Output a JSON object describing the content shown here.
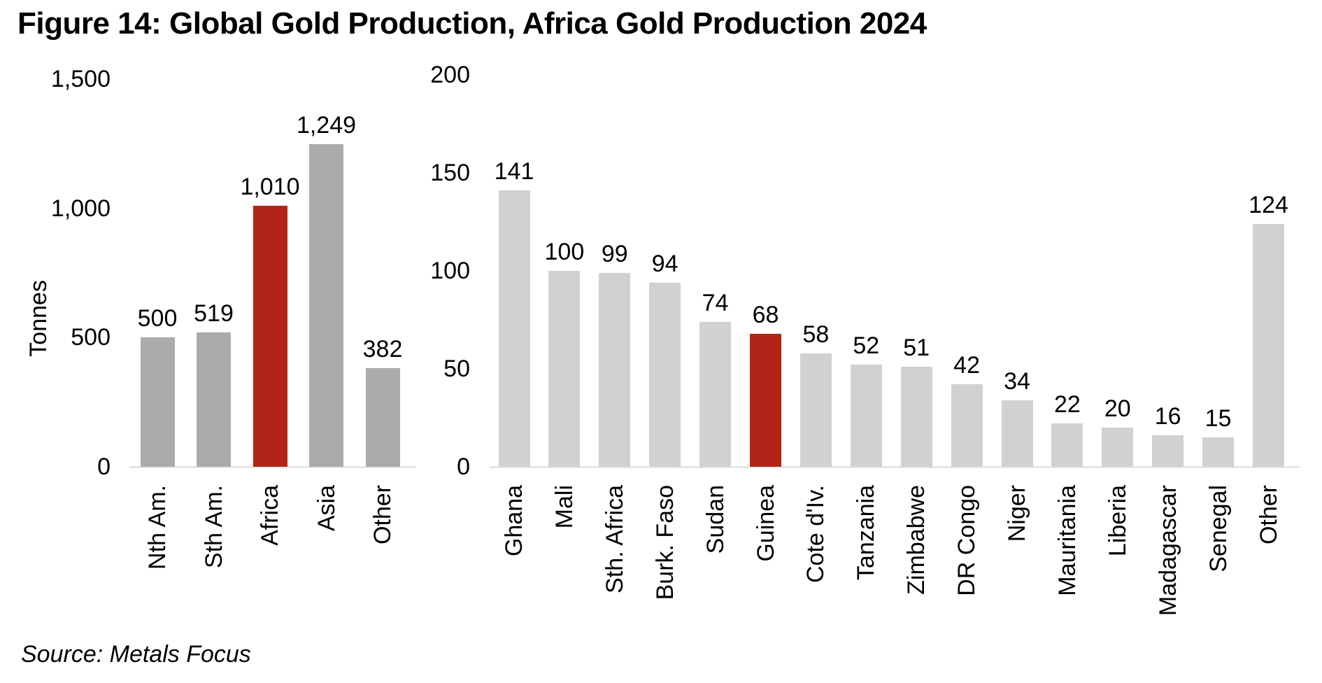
{
  "title": "Figure 14: Global Gold Production, Africa Gold Production 2024",
  "source": "Source: Metals Focus",
  "colors": {
    "background": "#FFFFFF",
    "text": "#000000",
    "bar_gray_left": "#ABABAB",
    "bar_gray_right": "#D1D1D1",
    "highlight_red": "#B22418",
    "axis_line": "#E5E5E5"
  },
  "chart_data": [
    {
      "type": "bar",
      "name": "global-gold-production-2024",
      "ylabel": "Tonnes",
      "xlabel": "",
      "ylim": [
        0,
        1500
      ],
      "grid": false,
      "legend": null,
      "yticks": [
        {
          "value": 0,
          "label": "0"
        },
        {
          "value": 500,
          "label": "500"
        },
        {
          "value": 1000,
          "label": "1,000"
        },
        {
          "value": 1500,
          "label": "1,500"
        }
      ],
      "categories": [
        "Nth Am.",
        "Sth Am.",
        "Africa",
        "Asia",
        "Other"
      ],
      "values": [
        500,
        519,
        1010,
        1249,
        382
      ],
      "value_labels": [
        "500",
        "519",
        "1,010",
        "1,249",
        "382"
      ],
      "highlight_category": "Africa",
      "highlight_index": 2
    },
    {
      "type": "bar",
      "name": "africa-gold-production-2024",
      "ylabel": "",
      "xlabel": "",
      "ylim": [
        0,
        200
      ],
      "grid": false,
      "legend": null,
      "yticks": [
        {
          "value": 0,
          "label": "0"
        },
        {
          "value": 50,
          "label": "50"
        },
        {
          "value": 100,
          "label": "100"
        },
        {
          "value": 150,
          "label": "150"
        },
        {
          "value": 200,
          "label": "200"
        }
      ],
      "categories": [
        "Ghana",
        "Mali",
        "Sth. Africa",
        "Burk. Faso",
        "Sudan",
        "Guinea",
        "Cote d'Iv.",
        "Tanzania",
        "Zimbabwe",
        "DR Congo",
        "Niger",
        "Mauritania",
        "Liberia",
        "Madagascar",
        "Senegal",
        "Other"
      ],
      "values": [
        141,
        100,
        99,
        94,
        74,
        68,
        58,
        52,
        51,
        42,
        34,
        22,
        20,
        16,
        15,
        124
      ],
      "value_labels": [
        "141",
        "100",
        "99",
        "94",
        "74",
        "68",
        "58",
        "52",
        "51",
        "42",
        "34",
        "22",
        "20",
        "16",
        "15",
        "124"
      ],
      "highlight_category": "Guinea",
      "highlight_index": 5
    }
  ]
}
